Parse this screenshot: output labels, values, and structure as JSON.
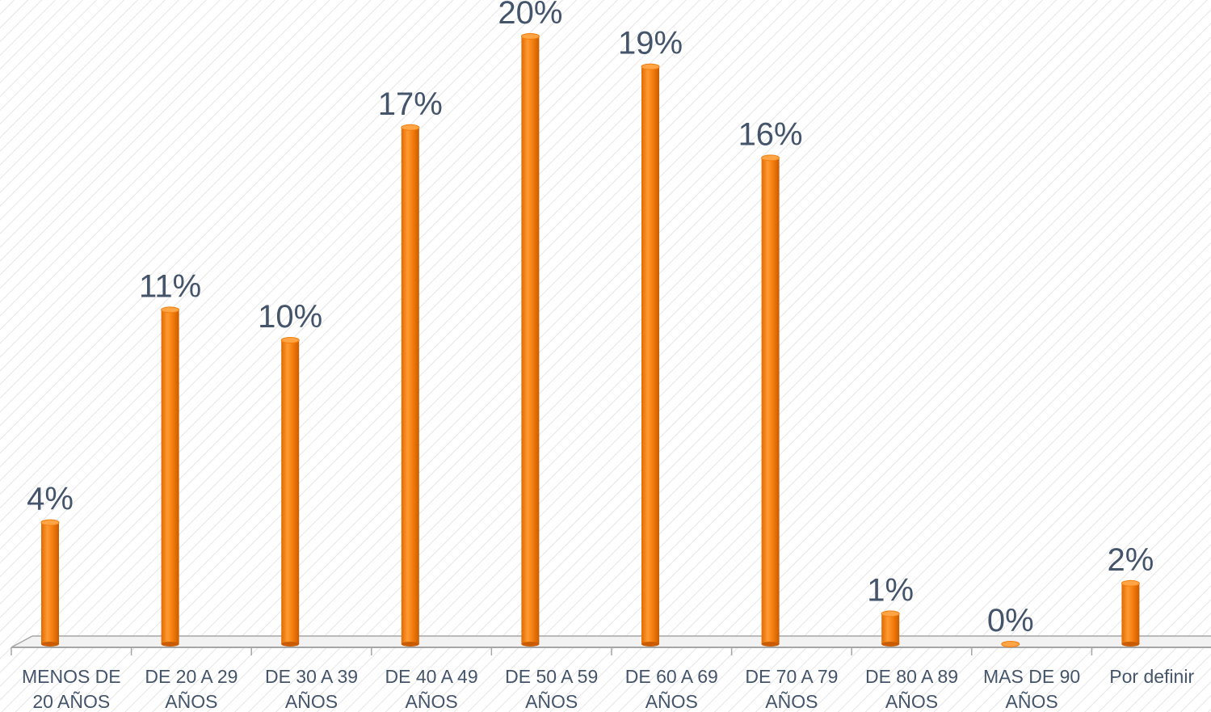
{
  "chart_data": {
    "type": "bar",
    "categories": [
      [
        "MENOS DE",
        "20 AÑOS"
      ],
      [
        "DE 20 A 29",
        "AÑOS"
      ],
      [
        "DE 30 A 39",
        "AÑOS"
      ],
      [
        "DE 40 A 49",
        "AÑOS"
      ],
      [
        "DE 50 A 59",
        "AÑOS"
      ],
      [
        "DE 60 A 69",
        "AÑOS"
      ],
      [
        "DE 70 A 79",
        "AÑOS"
      ],
      [
        "DE 80 A 89",
        "AÑOS"
      ],
      [
        "MAS DE 90",
        "AÑOS"
      ],
      [
        "Por definir"
      ]
    ],
    "values": [
      4,
      11,
      10,
      17,
      20,
      19,
      16,
      1,
      0,
      2
    ],
    "data_labels": [
      "4%",
      "11%",
      "10%",
      "17%",
      "20%",
      "19%",
      "16%",
      "1%",
      "0%",
      "2%"
    ],
    "ylim": [
      0,
      20
    ],
    "grid": false,
    "colors": {
      "bar": "#f47c0c",
      "bar_highlight": "#ffa545",
      "bar_shadow": "#c95c00",
      "axis": "#a6a6a6",
      "label_text": "#44546a",
      "background_stripe": "#e6e6e6"
    }
  }
}
